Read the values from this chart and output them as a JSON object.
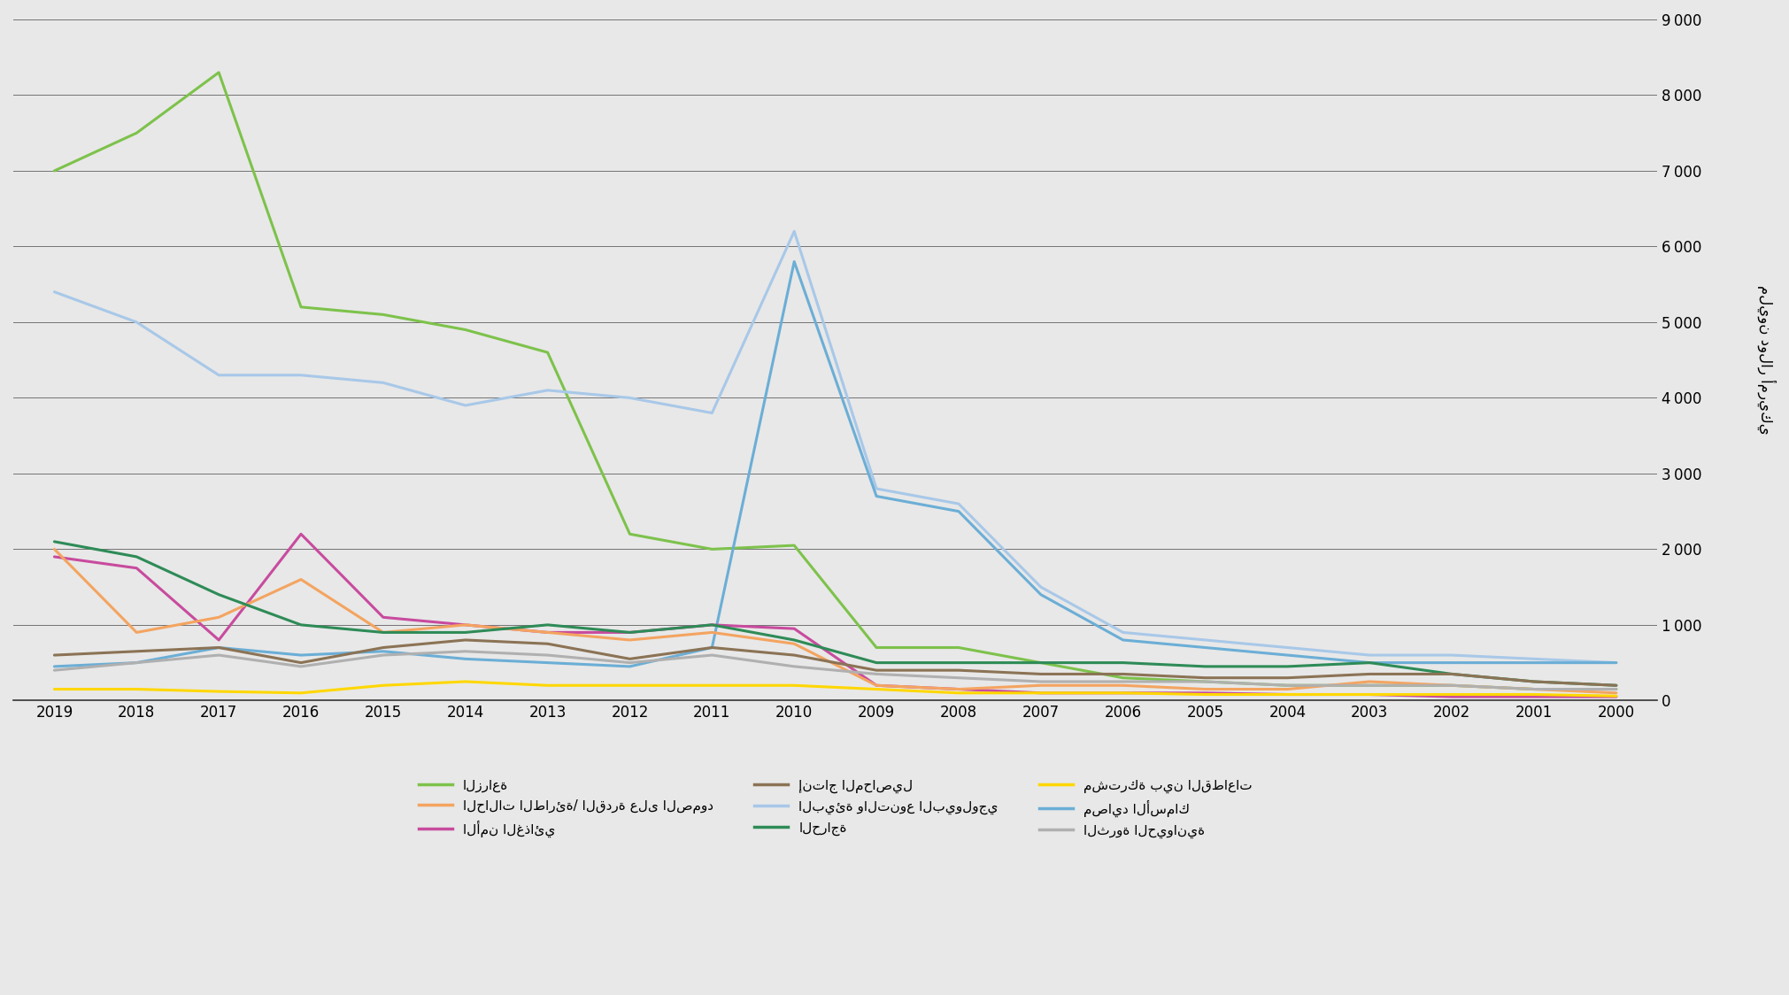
{
  "years": [
    2019,
    2018,
    2017,
    2016,
    2015,
    2014,
    2013,
    2012,
    2011,
    2010,
    2009,
    2008,
    2007,
    2006,
    2005,
    2004,
    2003,
    2002,
    2001,
    2000
  ],
  "series": {
    "agriculture": {
      "label": "الزراعة",
      "color": "#7dc24b",
      "values": [
        7000,
        7500,
        8300,
        5200,
        5100,
        4900,
        4600,
        2200,
        2000,
        2050,
        700,
        700,
        500,
        300,
        250,
        200,
        200,
        200,
        150,
        150
      ]
    },
    "resilience": {
      "label": "الحالات الطارئة/ القدرة على الصمود",
      "color": "#f4a460",
      "values": [
        2000,
        900,
        1100,
        1600,
        900,
        1000,
        900,
        800,
        900,
        750,
        200,
        150,
        200,
        200,
        150,
        150,
        250,
        200,
        150,
        100
      ]
    },
    "food_security": {
      "label": "الأمن الغذائي",
      "color": "#c84b9e",
      "values": [
        1900,
        1750,
        800,
        2200,
        1100,
        1000,
        900,
        900,
        1000,
        950,
        200,
        150,
        100,
        100,
        100,
        80,
        80,
        50,
        50,
        50
      ]
    },
    "fisheries": {
      "label": "مصايد الأسماك",
      "color": "#6baed6",
      "values": [
        450,
        500,
        700,
        600,
        650,
        550,
        500,
        450,
        700,
        5800,
        2700,
        2500,
        1400,
        800,
        700,
        600,
        500,
        500,
        500,
        500
      ]
    },
    "biodiversity": {
      "label": "البيئة والتنوع البيولوجي",
      "color": "#a8c8e8",
      "values": [
        5400,
        5000,
        4300,
        4300,
        4200,
        3900,
        4100,
        4000,
        3800,
        6200,
        2800,
        2600,
        1500,
        900,
        800,
        700,
        600,
        600,
        550,
        500
      ]
    },
    "forestry": {
      "label": "الحراجة",
      "color": "#2e8b57",
      "values": [
        2100,
        1900,
        1400,
        1000,
        900,
        900,
        1000,
        900,
        1000,
        800,
        500,
        500,
        500,
        500,
        450,
        450,
        500,
        350,
        250,
        200
      ]
    },
    "crop_production": {
      "label": "إنتاج المحاصيل",
      "color": "#8b7355",
      "values": [
        600,
        650,
        700,
        500,
        700,
        800,
        750,
        550,
        700,
        600,
        400,
        400,
        350,
        350,
        300,
        300,
        350,
        350,
        250,
        200
      ]
    },
    "livestock": {
      "label": "الثروة الحيوانية",
      "color": "#b0b0b0",
      "values": [
        400,
        500,
        600,
        450,
        600,
        650,
        600,
        500,
        600,
        450,
        350,
        300,
        250,
        250,
        250,
        200,
        200,
        200,
        150,
        150
      ]
    },
    "cross_sector": {
      "label": "مشتركة بين القطاعات",
      "color": "#ffd700",
      "values": [
        150,
        150,
        120,
        100,
        200,
        250,
        200,
        200,
        200,
        200,
        150,
        100,
        100,
        100,
        80,
        80,
        80,
        80,
        80,
        60
      ]
    }
  },
  "ylim": [
    0,
    9000
  ],
  "yticks": [
    0,
    1000,
    2000,
    3000,
    4000,
    5000,
    6000,
    7000,
    8000,
    9000
  ],
  "ylabel": "مليون دولار أمريكي",
  "background_color": "#e8e8e8",
  "plot_bg_color": "#e8e8e8",
  "grid_color": "#555555",
  "linewidth": 2.2
}
